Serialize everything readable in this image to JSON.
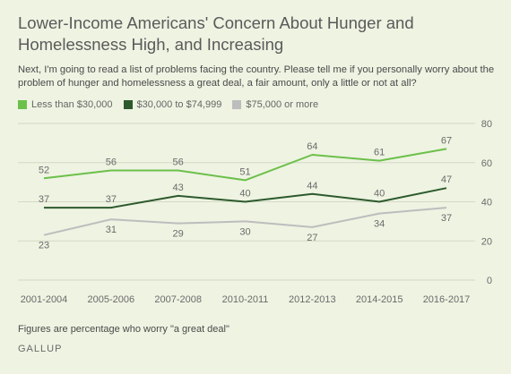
{
  "title": "Lower-Income Americans' Concern About Hunger and Homelessness High, and Increasing",
  "subtitle": "Next, I'm going to read a list of problems facing the country. Please tell me if you personally worry about the problem of hunger and homelessness a great deal, a fair amount, only a little or not at all?",
  "footnote": "Figures are percentage who worry \"a great deal\"",
  "source": "GALLUP",
  "chart_data": {
    "type": "line",
    "categories": [
      "2001-2004",
      "2005-2006",
      "2007-2008",
      "2010-2011",
      "2012-2013",
      "2014-2015",
      "2016-2017"
    ],
    "series": [
      {
        "name": "Less than $30,000",
        "color": "#6cc04a",
        "values": [
          52,
          56,
          56,
          51,
          64,
          61,
          67
        ]
      },
      {
        "name": "$30,000 to $74,999",
        "color": "#2d5a2d",
        "values": [
          37,
          37,
          43,
          40,
          44,
          40,
          47
        ]
      },
      {
        "name": "$75,000 or more",
        "color": "#bdbdbd",
        "values": [
          23,
          31,
          29,
          30,
          27,
          34,
          37
        ]
      }
    ],
    "yticks": [
      0,
      20,
      40,
      60,
      80
    ],
    "ylim": [
      0,
      80
    ],
    "grid": true,
    "legend": "top-left",
    "label_position": [
      "above",
      "above",
      "below"
    ]
  }
}
